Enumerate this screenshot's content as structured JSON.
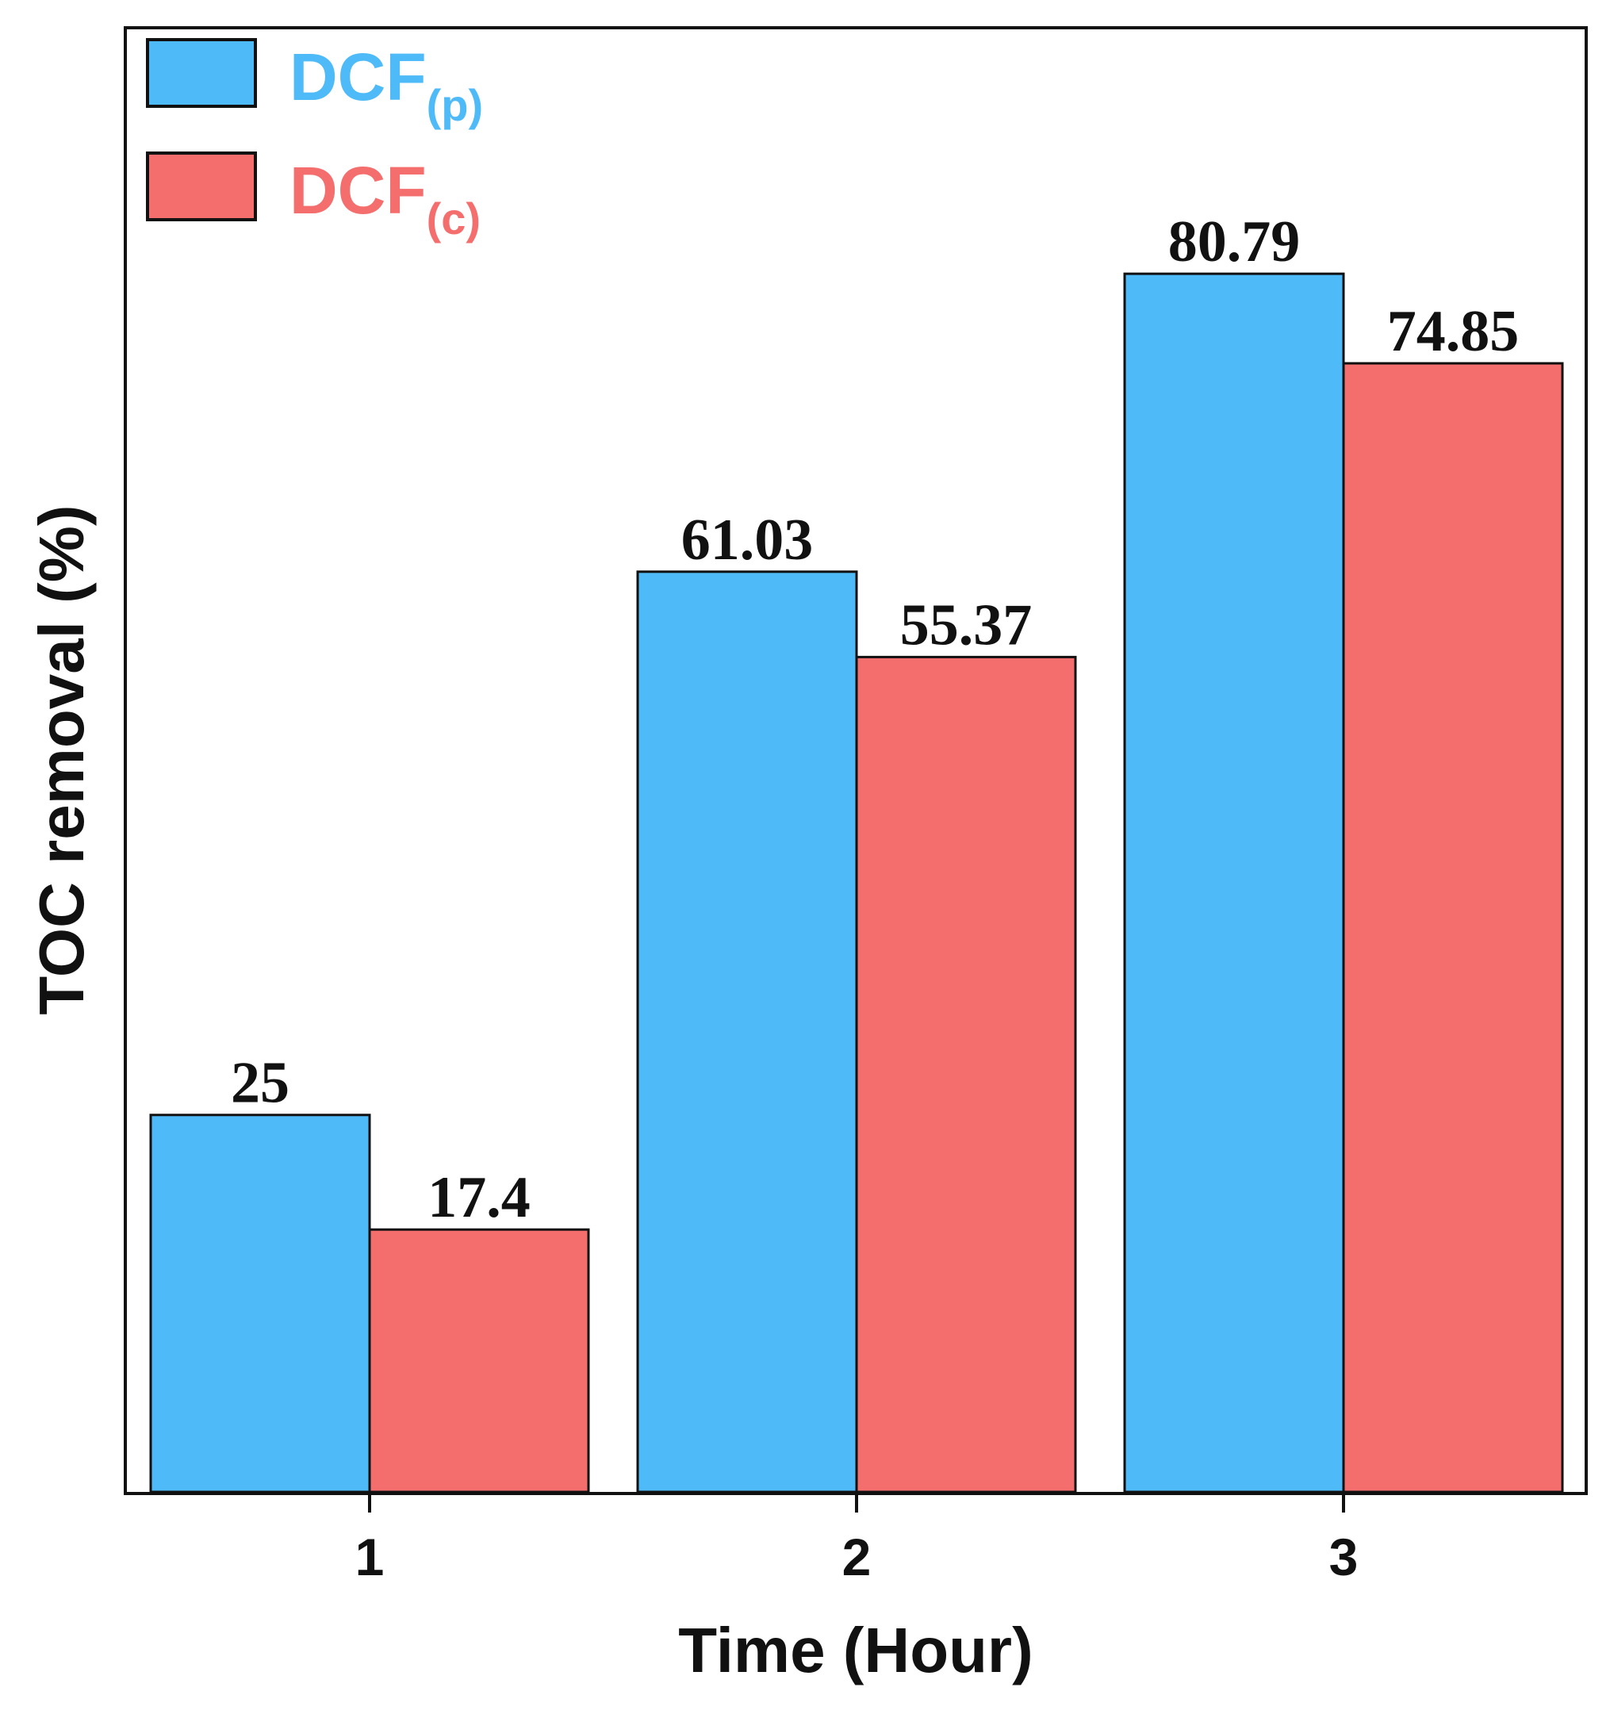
{
  "chart_data": {
    "type": "bar",
    "title": "",
    "xlabel": "Time (Hour)",
    "ylabel": "TOC removal (%)",
    "categories": [
      "1",
      "2",
      "3"
    ],
    "ylim": [
      0,
      97
    ],
    "grid": false,
    "legend_position": "top-left",
    "series": [
      {
        "name": "DCF",
        "subscript": "(p)",
        "color": "#4FBAF8",
        "values": [
          25,
          61.03,
          80.79
        ],
        "labels": [
          "25",
          "61.03",
          "80.79"
        ]
      },
      {
        "name": "DCF",
        "subscript": "(c)",
        "color": "#F56E6E",
        "values": [
          17.4,
          55.37,
          74.85
        ],
        "labels": [
          "17.4",
          "55.37",
          "74.85"
        ]
      }
    ]
  }
}
